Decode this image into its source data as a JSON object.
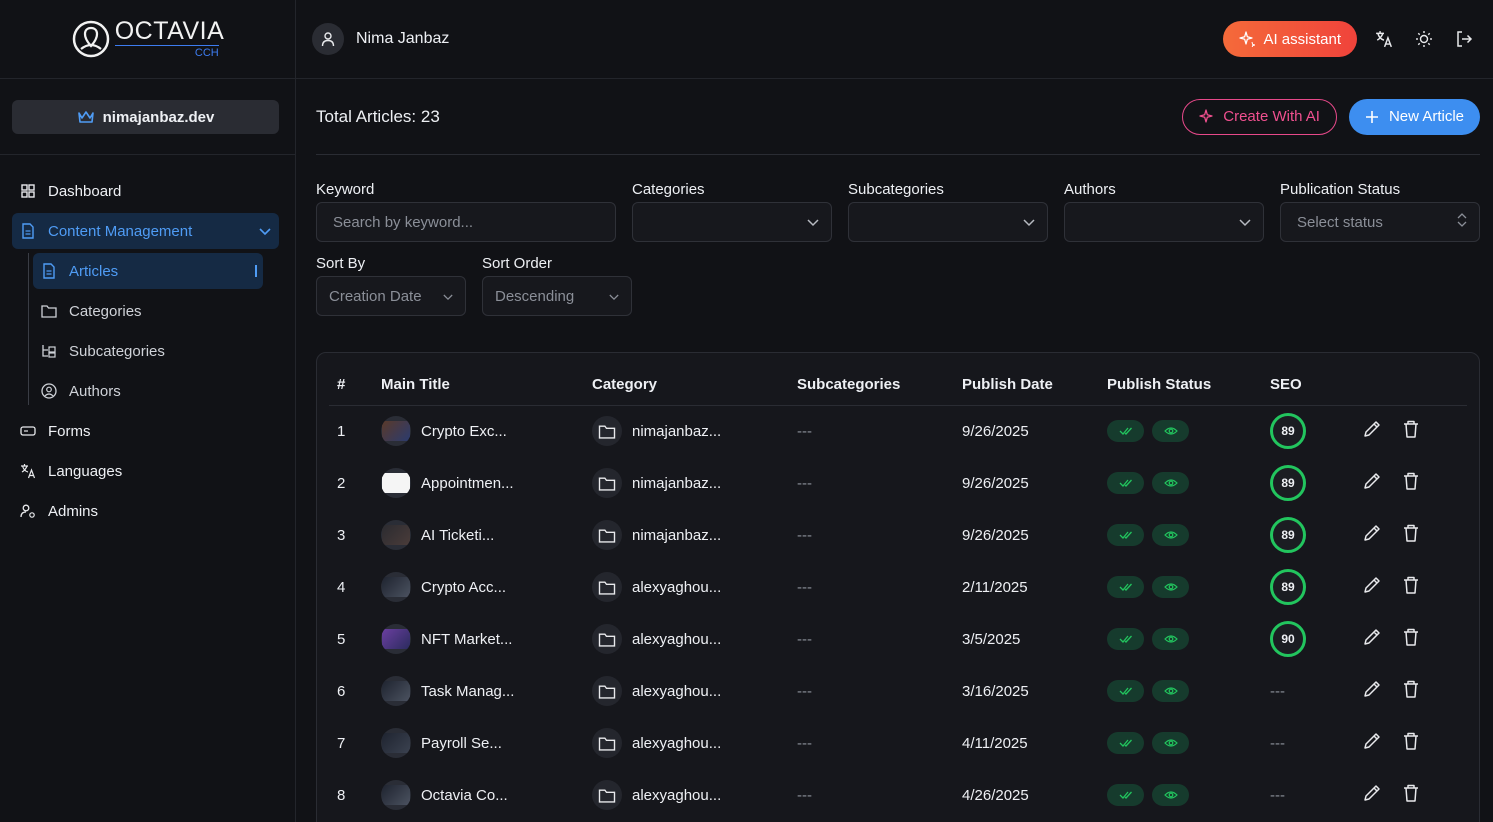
{
  "brand": {
    "name": "OCTAVIA",
    "sub": "CCH"
  },
  "workspace": {
    "label": "nimajanbaz.dev"
  },
  "nav": {
    "dashboard": "Dashboard",
    "content_management": "Content Management",
    "sub": {
      "articles": "Articles",
      "categories": "Categories",
      "subcategories": "Subcategories",
      "authors": "Authors"
    },
    "forms": "Forms",
    "languages": "Languages",
    "admins": "Admins"
  },
  "topbar": {
    "user": "Nima Janbaz",
    "ai_assistant": "AI assistant"
  },
  "header": {
    "total": "Total Articles: 23",
    "create_ai": "Create With AI",
    "new_article": "New Article"
  },
  "filters": {
    "keyword": {
      "label": "Keyword",
      "placeholder": "Search by keyword..."
    },
    "categories": {
      "label": "Categories",
      "value": ""
    },
    "subcategories": {
      "label": "Subcategories",
      "value": ""
    },
    "authors": {
      "label": "Authors",
      "value": ""
    },
    "status": {
      "label": "Publication Status",
      "value": "Select status"
    },
    "sort_by": {
      "label": "Sort By",
      "value": "Creation Date"
    },
    "sort_order": {
      "label": "Sort Order",
      "value": "Descending"
    }
  },
  "table": {
    "columns": [
      "#",
      "Main Title",
      "Category",
      "Subcategories",
      "Publish Date",
      "Publish Status",
      "SEO"
    ],
    "rows": [
      {
        "num": "1",
        "title": "Crypto Exc...",
        "category": "nimajanbaz...",
        "sub": "---",
        "date": "9/26/2025",
        "seo": "89"
      },
      {
        "num": "2",
        "title": "Appointmen...",
        "category": "nimajanbaz...",
        "sub": "---",
        "date": "9/26/2025",
        "seo": "89"
      },
      {
        "num": "3",
        "title": "AI Ticketi...",
        "category": "nimajanbaz...",
        "sub": "---",
        "date": "9/26/2025",
        "seo": "89"
      },
      {
        "num": "4",
        "title": "Crypto Acc...",
        "category": "alexyaghou...",
        "sub": "---",
        "date": "2/11/2025",
        "seo": "89"
      },
      {
        "num": "5",
        "title": "NFT Market...",
        "category": "alexyaghou...",
        "sub": "---",
        "date": "3/5/2025",
        "seo": "90"
      },
      {
        "num": "6",
        "title": "Task Manag...",
        "category": "alexyaghou...",
        "sub": "---",
        "date": "3/16/2025",
        "seo": "---"
      },
      {
        "num": "7",
        "title": "Payroll Se...",
        "category": "alexyaghou...",
        "sub": "---",
        "date": "4/11/2025",
        "seo": "---"
      },
      {
        "num": "8",
        "title": "Octavia Co...",
        "category": "alexyaghou...",
        "sub": "---",
        "date": "4/26/2025",
        "seo": "---"
      }
    ]
  },
  "colors": {
    "accent": "#4f9cf5",
    "success": "#22c55e",
    "ai_gradient_start": "#f46a3a",
    "ai_gradient_end": "#f0433b",
    "ai_outline": "#e7498a"
  }
}
